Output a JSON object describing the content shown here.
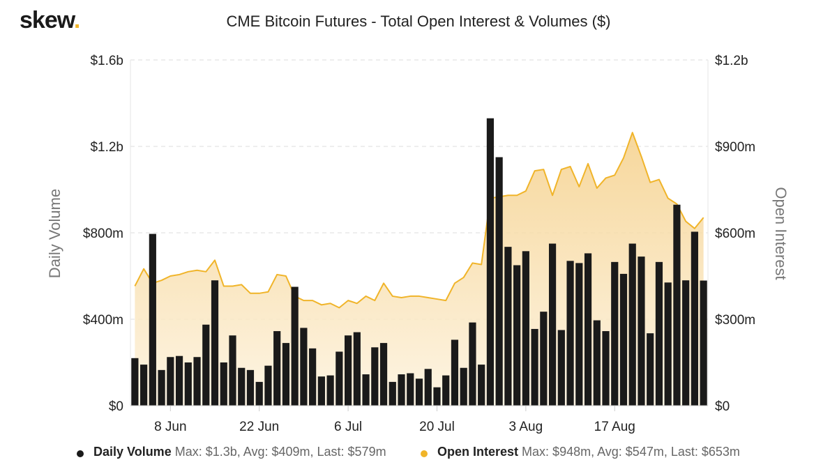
{
  "header": {
    "logo_text": "skew",
    "logo_dot": ".",
    "title": "CME Bitcoin Futures - Total Open Interest & Volumes ($)"
  },
  "colors": {
    "volume_bar": "#1a1a1a",
    "oi_line": "#f0b429",
    "oi_fill_top": "#f5d08a",
    "oi_fill_bottom": "#fdf3df",
    "grid": "#dddddd"
  },
  "legend": {
    "volume": {
      "name": "Daily Volume",
      "stats": "Max: $1.3b, Avg: $409m, Last: $579m"
    },
    "oi": {
      "name": "Open Interest",
      "stats": "Max: $948m, Avg: $547m, Last: $653m"
    }
  },
  "chart_data": {
    "type": "bar+area",
    "title": "CME Bitcoin Futures - Total Open Interest & Volumes ($)",
    "grid": true,
    "legend_position": "bottom",
    "left_axis": {
      "label": "Daily Volume",
      "range": [
        0,
        1600000000
      ],
      "ticks": [
        {
          "value": 0,
          "label": "$0"
        },
        {
          "value": 400000000,
          "label": "$400m"
        },
        {
          "value": 800000000,
          "label": "$800m"
        },
        {
          "value": 1200000000,
          "label": "$1.2b"
        },
        {
          "value": 1600000000,
          "label": "$1.6b"
        }
      ]
    },
    "right_axis": {
      "label": "Open Interest",
      "range": [
        0,
        1200000000
      ],
      "ticks": [
        {
          "value": 0,
          "label": "$0"
        },
        {
          "value": 300000000,
          "label": "$300m"
        },
        {
          "value": 600000000,
          "label": "$600m"
        },
        {
          "value": 900000000,
          "label": "$900m"
        },
        {
          "value": 1200000000,
          "label": "$1.2b"
        }
      ]
    },
    "x_ticks": [
      {
        "index": 4,
        "label": "8 Jun"
      },
      {
        "index": 14,
        "label": "22 Jun"
      },
      {
        "index": 24,
        "label": "6 Jul"
      },
      {
        "index": 34,
        "label": "20 Jul"
      },
      {
        "index": 44,
        "label": "3 Aug"
      },
      {
        "index": 54,
        "label": "17 Aug"
      }
    ],
    "series": [
      {
        "name": "Daily Volume",
        "type": "bar",
        "axis": "left",
        "values": [
          220000000,
          190000000,
          795000000,
          165000000,
          225000000,
          230000000,
          200000000,
          225000000,
          375000000,
          580000000,
          200000000,
          325000000,
          175000000,
          165000000,
          110000000,
          185000000,
          345000000,
          290000000,
          550000000,
          360000000,
          265000000,
          135000000,
          140000000,
          250000000,
          325000000,
          340000000,
          145000000,
          270000000,
          290000000,
          110000000,
          145000000,
          150000000,
          125000000,
          170000000,
          85000000,
          140000000,
          305000000,
          175000000,
          385000000,
          190000000,
          1330000000,
          1150000000,
          735000000,
          650000000,
          715000000,
          355000000,
          435000000,
          750000000,
          350000000,
          670000000,
          660000000,
          705000000,
          395000000,
          345000000,
          665000000,
          610000000,
          750000000,
          690000000,
          335000000,
          665000000,
          570000000,
          930000000,
          580000000,
          805000000,
          579000000
        ]
      },
      {
        "name": "Open Interest",
        "type": "area",
        "axis": "right",
        "values": [
          415000000,
          475000000,
          425000000,
          435000000,
          450000000,
          455000000,
          465000000,
          470000000,
          465000000,
          505000000,
          415000000,
          415000000,
          420000000,
          390000000,
          390000000,
          395000000,
          455000000,
          450000000,
          380000000,
          365000000,
          365000000,
          350000000,
          355000000,
          340000000,
          365000000,
          355000000,
          380000000,
          365000000,
          425000000,
          380000000,
          375000000,
          380000000,
          380000000,
          375000000,
          370000000,
          365000000,
          425000000,
          445000000,
          495000000,
          490000000,
          720000000,
          725000000,
          730000000,
          730000000,
          745000000,
          815000000,
          820000000,
          730000000,
          820000000,
          830000000,
          760000000,
          840000000,
          755000000,
          790000000,
          800000000,
          860000000,
          948000000,
          865000000,
          775000000,
          785000000,
          720000000,
          700000000,
          640000000,
          615000000,
          653000000
        ]
      }
    ]
  }
}
